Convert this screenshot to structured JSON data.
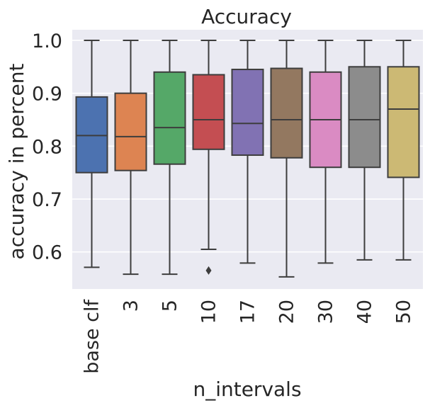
{
  "chart_data": {
    "type": "box",
    "title": "Accuracy",
    "xlabel": "n_intervals",
    "ylabel": "accuracy in percent",
    "ylim": [
      0.53,
      1.02
    ],
    "yticks": [
      0.6,
      0.7,
      0.8,
      0.9,
      1.0
    ],
    "ytick_labels": [
      "0.6",
      "0.7",
      "0.8",
      "0.9",
      "1.0"
    ],
    "categories": [
      "base clf",
      "3",
      "5",
      "10",
      "17",
      "20",
      "30",
      "40",
      "50"
    ],
    "colors": [
      "#4c72b0",
      "#dd8452",
      "#55a868",
      "#c44e52",
      "#8172b3",
      "#937860",
      "#da8bc3",
      "#8c8c8c",
      "#ccb974"
    ],
    "series": [
      {
        "category": "base clf",
        "whisker_low": 0.571,
        "q1": 0.75,
        "median": 0.82,
        "q3": 0.893,
        "whisker_high": 1.0,
        "outliers": []
      },
      {
        "category": "3",
        "whisker_low": 0.558,
        "q1": 0.754,
        "median": 0.818,
        "q3": 0.9,
        "whisker_high": 1.0,
        "outliers": []
      },
      {
        "category": "5",
        "whisker_low": 0.558,
        "q1": 0.766,
        "median": 0.835,
        "q3": 0.94,
        "whisker_high": 1.0,
        "outliers": []
      },
      {
        "category": "10",
        "whisker_low": 0.605,
        "q1": 0.794,
        "median": 0.85,
        "q3": 0.935,
        "whisker_high": 1.0,
        "outliers": [
          0.565
        ]
      },
      {
        "category": "17",
        "whisker_low": 0.579,
        "q1": 0.783,
        "median": 0.843,
        "q3": 0.945,
        "whisker_high": 1.0,
        "outliers": []
      },
      {
        "category": "20",
        "whisker_low": 0.553,
        "q1": 0.778,
        "median": 0.85,
        "q3": 0.947,
        "whisker_high": 1.0,
        "outliers": []
      },
      {
        "category": "30",
        "whisker_low": 0.579,
        "q1": 0.76,
        "median": 0.85,
        "q3": 0.94,
        "whisker_high": 1.0,
        "outliers": []
      },
      {
        "category": "40",
        "whisker_low": 0.585,
        "q1": 0.76,
        "median": 0.85,
        "q3": 0.95,
        "whisker_high": 1.0,
        "outliers": []
      },
      {
        "category": "50",
        "whisker_low": 0.585,
        "q1": 0.741,
        "median": 0.87,
        "q3": 0.95,
        "whisker_high": 1.0,
        "outliers": []
      }
    ],
    "grid": true,
    "background": "#eaeaf2",
    "line_color": "#3d3d3d"
  }
}
